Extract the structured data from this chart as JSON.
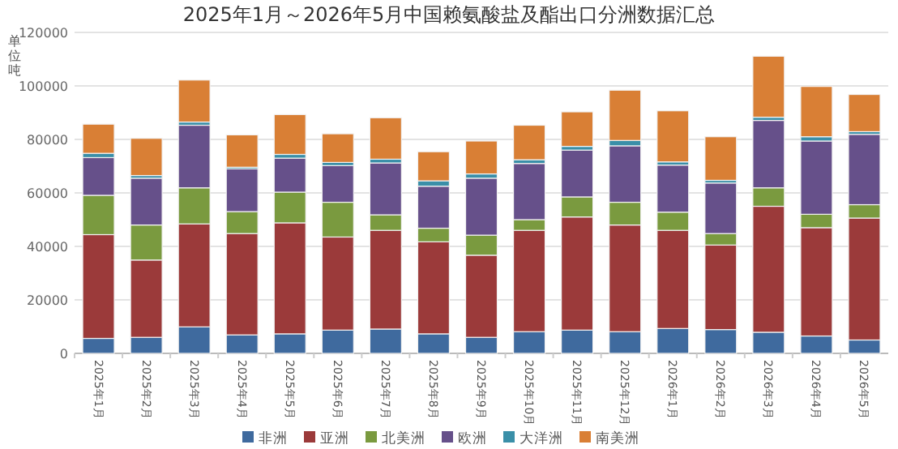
{
  "chart_data": {
    "type": "bar",
    "stacked": true,
    "title": "2025年1月～2026年5月中国赖氨酸盐及酯出口分洲数据汇总",
    "ylabel": "单位吨",
    "categories": [
      "2025年1月",
      "2025年2月",
      "2025年3月",
      "2025年4月",
      "2025年5月",
      "2025年6月",
      "2025年7月",
      "2025年8月",
      "2025年9月",
      "2025年10月",
      "2025年11月",
      "2025年12月",
      "2026年1月",
      "2026年2月",
      "2026年3月",
      "2026年4月",
      "2026年5月"
    ],
    "series": [
      {
        "name": "非洲",
        "color": "#3f6a9e",
        "values": [
          5600,
          6000,
          9900,
          6900,
          7300,
          8700,
          9100,
          7300,
          6000,
          8100,
          8700,
          8100,
          9300,
          8900,
          7900,
          6500,
          5000
        ]
      },
      {
        "name": "亚洲",
        "color": "#9b3a3a",
        "values": [
          38800,
          28900,
          38500,
          37900,
          41500,
          34800,
          36900,
          34400,
          30700,
          37900,
          42300,
          39900,
          36700,
          31600,
          47100,
          40500,
          45600
        ]
      },
      {
        "name": "北美洲",
        "color": "#7a9a3f",
        "values": [
          14700,
          13100,
          13500,
          8200,
          11500,
          13000,
          5800,
          5100,
          7500,
          4000,
          7500,
          8500,
          6800,
          4300,
          6900,
          5000,
          5000
        ]
      },
      {
        "name": "欧洲",
        "color": "#66508a",
        "values": [
          14100,
          17500,
          23400,
          16000,
          12700,
          13700,
          19400,
          15700,
          21300,
          21000,
          17500,
          21100,
          17600,
          18900,
          25200,
          27400,
          26300
        ]
      },
      {
        "name": "大洋洲",
        "color": "#3a8fa8",
        "values": [
          1600,
          1000,
          1200,
          600,
          1400,
          1200,
          1400,
          2000,
          1600,
          1400,
          1400,
          2000,
          1200,
          1000,
          1200,
          1600,
          1000
        ]
      },
      {
        "name": "南美洲",
        "color": "#d97f35",
        "values": [
          10900,
          13900,
          15700,
          12100,
          14900,
          10700,
          15500,
          10900,
          12300,
          12900,
          12900,
          18800,
          19100,
          16300,
          22800,
          18800,
          13900
        ]
      }
    ],
    "ylim": [
      0,
      120000
    ],
    "yticks": [
      0,
      20000,
      40000,
      60000,
      80000,
      100000,
      120000
    ],
    "grid": "y",
    "legend": "bottom"
  }
}
